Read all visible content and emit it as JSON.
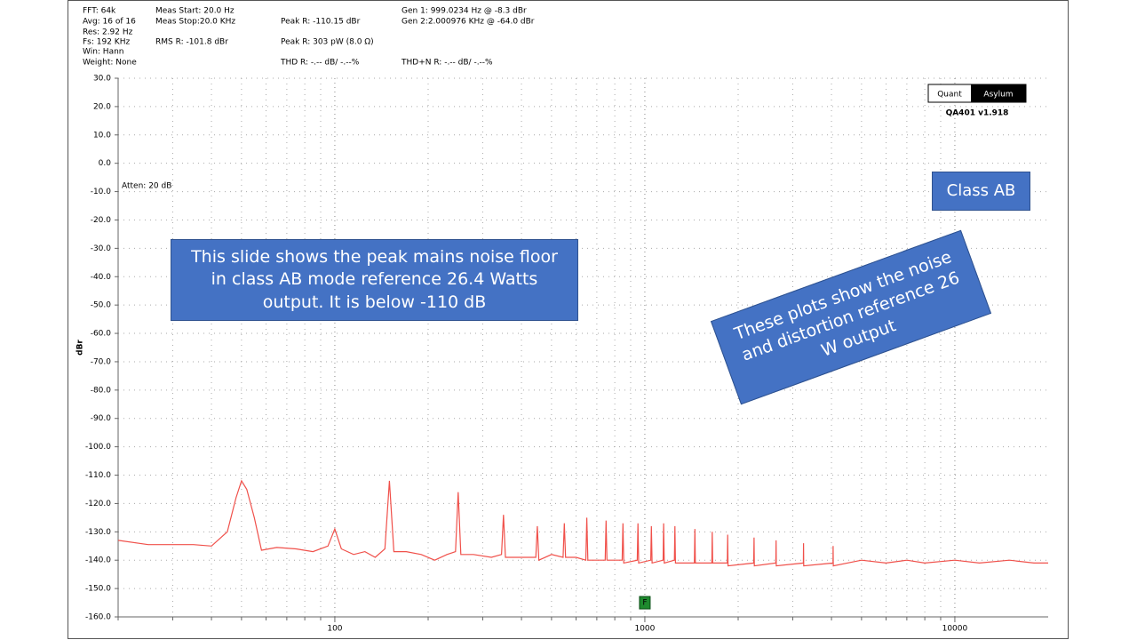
{
  "chart_data": {
    "type": "line",
    "info": [
      "FFT: 64k",
      "Avg: 16 of 16",
      "Res: 2.92 Hz",
      "Fs: 192 KHz",
      "Win: Hann",
      "Weight: None",
      "Meas Start: 20.0 Hz",
      "Meas Stop:20.0 KHz",
      "RMS R: -101.8 dBr",
      "Peak R: -110.15 dBr",
      "Peak R: 303 pW (8.0 Ω)",
      "THD R: -.-- dB/ -.--%",
      "Gen 1: 999.0234 Hz @ -8.3  dBr",
      "Gen 2:2.000976 KHz @ -64.0  dBr",
      "THD+N R: -.-- dB/ -.--%"
    ],
    "y_label": "dBr",
    "logo": [
      "Quant",
      "Asylum"
    ],
    "version": "QA401 v1.918",
    "atten": "Atten: 20 dB",
    "marker": "F",
    "annotations": [
      "Class AB",
      "This slide shows the peak mains noise floor in class AB mode reference 26.4 Watts output.  It is below -110 dB",
      "These plots show the noise and distortion reference 26 W output"
    ],
    "x_log": true,
    "grid": true,
    "xlim": [
      20,
      20000
    ],
    "ylim": [
      -160,
      30
    ],
    "xticks": [
      100,
      1000,
      10000
    ],
    "xminor": [
      20,
      30,
      40,
      50,
      60,
      70,
      80,
      90,
      200,
      300,
      400,
      500,
      600,
      700,
      800,
      900,
      2000,
      3000,
      4000,
      5000,
      6000,
      7000,
      8000,
      9000
    ],
    "yticks": [
      {
        "value": 30,
        "label": "30.0"
      },
      {
        "value": 20,
        "label": "20.0"
      },
      {
        "value": 10,
        "label": "10.0"
      },
      {
        "value": 0,
        "label": "0.0"
      },
      {
        "value": -10,
        "label": "-10.0"
      },
      {
        "value": -20,
        "label": "-20.0"
      },
      {
        "value": -30,
        "label": "-30.0"
      },
      {
        "value": -40,
        "label": "-40.0"
      },
      {
        "value": -50,
        "label": "-50.0"
      },
      {
        "value": -60,
        "label": "-60.0"
      },
      {
        "value": -70,
        "label": "-70.0"
      },
      {
        "value": -80,
        "label": "-80.0"
      },
      {
        "value": -90,
        "label": "-90.0"
      },
      {
        "value": -100,
        "label": "-100.0"
      },
      {
        "value": -110,
        "label": "-110.0"
      },
      {
        "value": -120,
        "label": "-120.0"
      },
      {
        "value": -130,
        "label": "-130.0"
      },
      {
        "value": -140,
        "label": "-140.0"
      },
      {
        "value": -150,
        "label": "-150.0"
      },
      {
        "value": -160,
        "label": "-160.0"
      }
    ],
    "marker_x": 1000,
    "marker_y": -155,
    "x": [
      20,
      25,
      30,
      35,
      40,
      45,
      48,
      50,
      52,
      55,
      58,
      65,
      75,
      85,
      95,
      100,
      105,
      115,
      125,
      135,
      145,
      150,
      155,
      170,
      190,
      210,
      230,
      245,
      250,
      255,
      280,
      320,
      345,
      350,
      355,
      400,
      445,
      450,
      455,
      500,
      545,
      550,
      555,
      600,
      645,
      650,
      655,
      700,
      745,
      750,
      755,
      845,
      850,
      855,
      945,
      950,
      955,
      1045,
      1050,
      1055,
      1145,
      1150,
      1155,
      1245,
      1250,
      1255,
      1445,
      1450,
      1455,
      1645,
      1650,
      1655,
      1845,
      1850,
      1855,
      2245,
      2250,
      2255,
      2645,
      2650,
      2655,
      3245,
      3250,
      3255,
      4045,
      4050,
      4055,
      5000,
      6000,
      7000,
      8000,
      10000,
      12000,
      15000,
      18000,
      20000
    ],
    "series": [
      {
        "name": "R",
        "color": "#f0504a",
        "values": [
          -133,
          -134.5,
          -134.5,
          -134.5,
          -135,
          -130,
          -118,
          -112,
          -115,
          -125,
          -136.5,
          -135.5,
          -136,
          -137,
          -135,
          -129,
          -136,
          -138,
          -137,
          -139,
          -136,
          -112,
          -137,
          -137,
          -138,
          -140,
          -138,
          -137,
          -116,
          -138,
          -138,
          -139,
          -138,
          -124,
          -139,
          -139,
          -139,
          -128,
          -140,
          -138,
          -139,
          -127,
          -139,
          -139,
          -140,
          -125,
          -140,
          -140,
          -140,
          -126,
          -140,
          -140,
          -127,
          -141,
          -140,
          -127,
          -141,
          -140,
          -128,
          -141,
          -140,
          -127,
          -141,
          -140,
          -128,
          -141,
          -141,
          -129,
          -141,
          -141,
          -130,
          -141,
          -141,
          -131,
          -142,
          -141,
          -132,
          -142,
          -141,
          -133,
          -142,
          -141,
          -134,
          -142,
          -141,
          -135,
          -142,
          -140,
          -141,
          -140,
          -141,
          -140,
          -141,
          -140,
          -141,
          -141
        ]
      }
    ]
  }
}
